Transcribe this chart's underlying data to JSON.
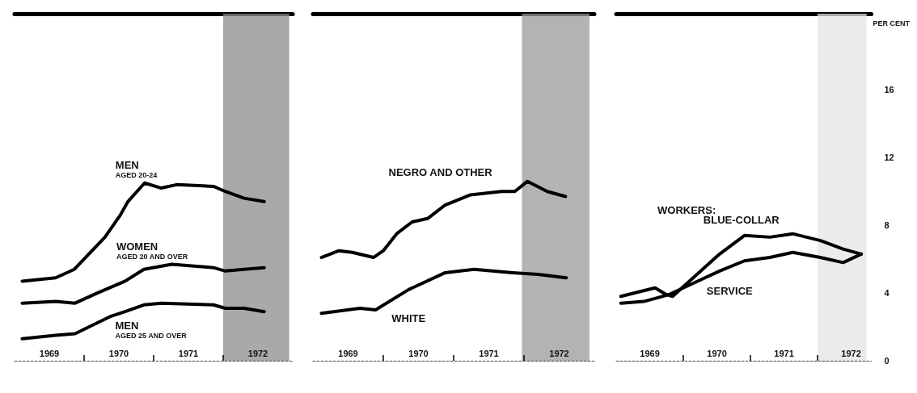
{
  "chart_data": [
    {
      "type": "line",
      "xlim": [
        1968.5,
        1972.5
      ],
      "ylim": [
        0,
        20.5
      ],
      "yticks": [
        0,
        4,
        8,
        12,
        16
      ],
      "tick_labels": "x",
      "xticks": [
        1969,
        {
          "value": 1969.5,
          "label": null
        },
        1970,
        {
          "value": 1970.5,
          "label": null
        },
        1971,
        {
          "value": 1971.5,
          "label": null
        },
        1972
      ],
      "bands": [
        {
          "axis": "x",
          "from": 1971.5,
          "to": 1972.45,
          "color": "#8c8c8c"
        }
      ],
      "series": [
        {
          "name": "MEN\nAGED 20-24",
          "color": "#000000",
          "x": [
            1968.61,
            1969.09,
            1969.36,
            1969.8,
            1970.02,
            1970.13,
            1970.37,
            1970.61,
            1970.83,
            1971.36,
            1971.53,
            1971.8,
            1972.09
          ],
          "values": [
            4.7,
            4.9,
            5.4,
            7.3,
            8.6,
            9.4,
            10.5,
            10.2,
            10.4,
            10.3,
            10.0,
            9.6,
            9.4
          ]
        },
        {
          "name": "WOMEN\nAGED 20 AND OVER",
          "color": "#000000",
          "x": [
            1968.61,
            1969.09,
            1969.37,
            1969.69,
            1970.09,
            1970.36,
            1970.76,
            1971.36,
            1971.53,
            1971.8,
            1972.09
          ],
          "values": [
            3.4,
            3.5,
            3.4,
            4.0,
            4.7,
            5.4,
            5.7,
            5.5,
            5.3,
            5.4,
            5.5
          ]
        },
        {
          "name": "MEN\nAGED 25 AND OVER",
          "color": "#000000",
          "x": [
            1968.61,
            1969.09,
            1969.37,
            1969.87,
            1970.09,
            1970.36,
            1970.61,
            1971.36,
            1971.53,
            1971.8,
            1972.09
          ],
          "values": [
            1.3,
            1.5,
            1.6,
            2.6,
            2.9,
            3.3,
            3.4,
            3.3,
            3.1,
            3.1,
            2.9
          ]
        }
      ]
    },
    {
      "type": "line",
      "xlim": [
        1968.5,
        1972.5
      ],
      "ylim": [
        0,
        20.5
      ],
      "yticks": [
        0,
        4,
        8,
        12,
        16
      ],
      "tick_labels": "x",
      "xticks": [
        1969,
        {
          "value": 1969.5,
          "label": null
        },
        1970,
        {
          "value": 1970.5,
          "label": null
        },
        1971,
        {
          "value": 1971.5,
          "label": null
        },
        1972
      ],
      "bands": [
        {
          "axis": "x",
          "from": 1971.47,
          "to": 1972.43,
          "color": "#9a9a9a"
        }
      ],
      "series": [
        {
          "name": "NEGRO AND OTHER",
          "color": "#000000",
          "x": [
            1968.62,
            1968.87,
            1969.06,
            1969.36,
            1969.5,
            1969.69,
            1969.91,
            1970.13,
            1970.38,
            1970.74,
            1971.18,
            1971.37,
            1971.55,
            1971.83,
            1972.09
          ],
          "values": [
            6.1,
            6.5,
            6.4,
            6.1,
            6.5,
            7.5,
            8.2,
            8.4,
            9.2,
            9.8,
            10.0,
            10.0,
            10.6,
            10.0,
            9.7
          ]
        },
        {
          "name": "WHITE",
          "color": "#000000",
          "x": [
            1968.62,
            1969.17,
            1969.39,
            1969.86,
            1970.38,
            1970.79,
            1971.34,
            1971.7,
            1972.1
          ],
          "values": [
            2.8,
            3.1,
            3.0,
            4.2,
            5.2,
            5.4,
            5.2,
            5.1,
            4.9
          ]
        }
      ]
    },
    {
      "type": "line",
      "xlim": [
        1968.5,
        1972.3
      ],
      "ylim": [
        0,
        20.5
      ],
      "yticks": [
        0,
        4,
        8,
        12,
        16
      ],
      "ylabel": "PER CENT",
      "annotations": [
        "WORKERS:"
      ],
      "xticks": [
        1969,
        {
          "value": 1969.5,
          "label": null
        },
        1970,
        {
          "value": 1970.5,
          "label": null
        },
        1971,
        {
          "value": 1971.5,
          "label": null
        },
        1972
      ],
      "bands": [
        {
          "axis": "x",
          "from": 1971.5,
          "to": 1972.23,
          "color": "#e4e4e4"
        }
      ],
      "series": [
        {
          "name": "BLUE-COLLAR",
          "color": "#000000",
          "x": [
            1968.57,
            1968.87,
            1969.08,
            1969.25,
            1969.34,
            1969.62,
            1970.04,
            1970.41,
            1970.79,
            1971.13,
            1971.54,
            1971.88,
            1972.15
          ],
          "values": [
            3.8,
            4.1,
            4.3,
            3.9,
            3.8,
            4.8,
            6.3,
            7.4,
            7.3,
            7.5,
            7.1,
            6.6,
            6.3
          ]
        },
        {
          "name": "SERVICE",
          "color": "#000000",
          "x": [
            1968.57,
            1968.91,
            1969.1,
            1969.28,
            1969.39,
            1969.66,
            1970.04,
            1970.41,
            1970.79,
            1971.13,
            1971.54,
            1971.88,
            1972.15
          ],
          "values": [
            3.4,
            3.5,
            3.7,
            3.9,
            4.1,
            4.6,
            5.3,
            5.9,
            6.1,
            6.4,
            6.1,
            5.8,
            6.3
          ]
        }
      ]
    }
  ]
}
